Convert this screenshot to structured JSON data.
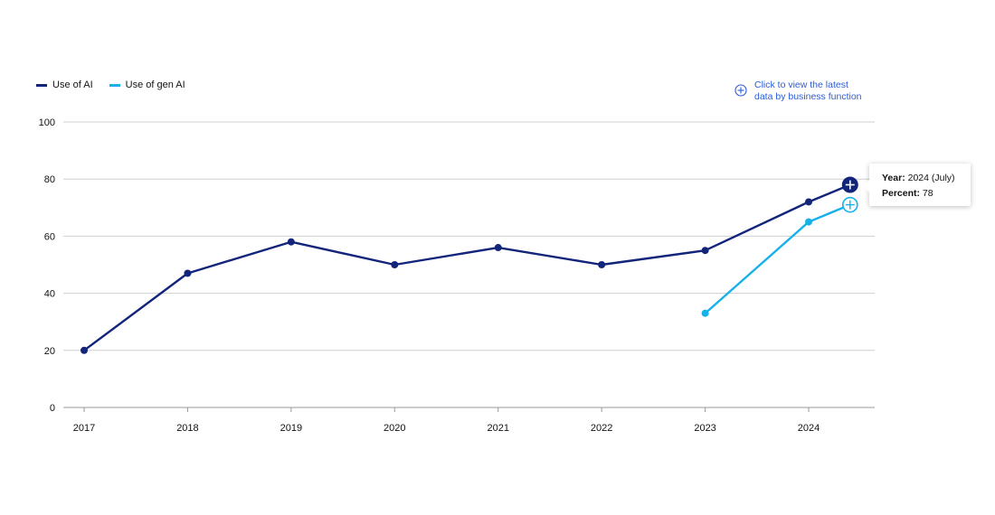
{
  "legend": {
    "items": [
      {
        "label": "Use of AI",
        "color": "#12257a"
      },
      {
        "label": "Use of gen AI",
        "color": "#16b1ea"
      }
    ]
  },
  "hint": {
    "line1": "Click to view the latest",
    "line2": "data by business function",
    "icon": "plus-circle-icon",
    "color": "#2a5cdb"
  },
  "tooltip": {
    "year_label": "Year:",
    "year_value": " 2024 (July)",
    "percent_label": "Percent:",
    "percent_value": " 78"
  },
  "chart_data": {
    "type": "line",
    "title": "",
    "xlabel": "",
    "ylabel": "",
    "categories": [
      "2017",
      "2018",
      "2019",
      "2020",
      "2021",
      "2022",
      "2023",
      "2024"
    ],
    "ylim": [
      0,
      100
    ],
    "yticks": [
      0,
      20,
      40,
      60,
      80,
      100
    ],
    "grid": true,
    "series": [
      {
        "name": "Use of AI",
        "color": "#12257a",
        "points": [
          {
            "x": 2017,
            "y": 20
          },
          {
            "x": 2018,
            "y": 47
          },
          {
            "x": 2019,
            "y": 58
          },
          {
            "x": 2020,
            "y": 50
          },
          {
            "x": 2021,
            "y": 56
          },
          {
            "x": 2022,
            "y": 50
          },
          {
            "x": 2023,
            "y": 55
          },
          {
            "x": 2024,
            "y": 72
          },
          {
            "x": 2024.4,
            "y": 78,
            "highlight": true
          }
        ]
      },
      {
        "name": "Use of gen AI",
        "color": "#16b1ea",
        "points": [
          {
            "x": 2023,
            "y": 33
          },
          {
            "x": 2024,
            "y": 65
          },
          {
            "x": 2024.4,
            "y": 71,
            "highlight": true
          }
        ]
      }
    ]
  }
}
